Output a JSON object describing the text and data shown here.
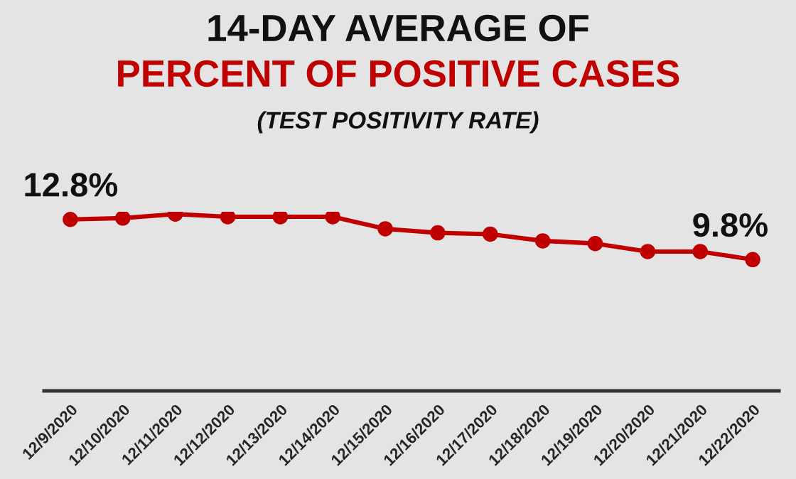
{
  "chart_data": {
    "type": "line",
    "title": "14-DAY AVERAGE OF",
    "subtitle": "PERCENT OF POSITIVE CASES",
    "annotations": [
      "(TEST POSITIVITY RATE)"
    ],
    "categories": [
      "12/9/2020",
      "12/10/2020",
      "12/11/2020",
      "12/12/2020",
      "12/13/2020",
      "12/14/2020",
      "12/15/2020",
      "12/16/2020",
      "12/17/2020",
      "12/18/2020",
      "12/19/2020",
      "12/20/2020",
      "12/21/2020",
      "12/22/2020"
    ],
    "series": [
      {
        "color": "#c00000",
        "values": [
          12.8,
          12.9,
          13.2,
          13.0,
          13.0,
          13.0,
          12.1,
          11.8,
          11.7,
          11.2,
          11.0,
          10.4,
          10.4,
          9.8
        ],
        "value_labels": [
          "12.8%",
          null,
          null,
          null,
          null,
          null,
          null,
          null,
          null,
          null,
          null,
          null,
          null,
          "9.8%"
        ]
      }
    ],
    "tick_labels": "x",
    "marker": "circle",
    "line_style": "solid",
    "grid": false,
    "legend": false
  }
}
